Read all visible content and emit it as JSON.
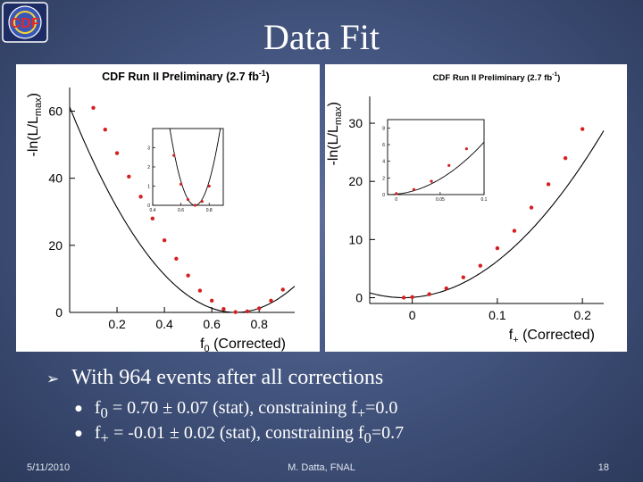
{
  "slide": {
    "title": "Data Fit",
    "logo_text": "CDF",
    "bullet_main": "With 964 events after all corrections",
    "sub1": {
      "a": "f",
      "a_sub": "0",
      "b": " = 0.70 ± 0.07 (stat), constraining f",
      "b_sub": "+",
      "c": "=0.0"
    },
    "sub2": {
      "a": "f",
      "a_sub": "+",
      "b": " = -0.01 ± 0.02 (stat), constraining f",
      "b_sub": "0",
      "c": "=0.7"
    }
  },
  "footer": {
    "date": "5/11/2010",
    "author": "M. Datta, FNAL",
    "page": "18"
  },
  "colors": {
    "marker": "#d42020",
    "curve": "#000000",
    "text": "#ffffff"
  },
  "chart_data": [
    {
      "type": "scatter",
      "title": "CDF Run II Preliminary (2.7 fb",
      "title_sup": "-1",
      "title_end": ")",
      "xlabel": "f",
      "xlabel_sub": "0",
      "xlabel_end": " (Corrected)",
      "ylabel": "-ln(L/L",
      "ylabel_sub": "max",
      "ylabel_end": ")",
      "xlim": [
        0.0,
        0.95
      ],
      "ylim": [
        0,
        66
      ],
      "xticks": [
        0.2,
        0.4,
        0.6,
        0.8
      ],
      "xtick_labels": [
        "0.2",
        "0.4",
        "0.6",
        "0.8"
      ],
      "yticks": [
        0,
        20,
        40,
        60
      ],
      "ytick_labels": [
        "0",
        "20",
        "40",
        "60"
      ],
      "fit_min": 0.7,
      "fit_coef": 125,
      "points": [
        {
          "x": 0.1,
          "y": 61
        },
        {
          "x": 0.15,
          "y": 54.5
        },
        {
          "x": 0.2,
          "y": 47.5
        },
        {
          "x": 0.25,
          "y": 40.5
        },
        {
          "x": 0.3,
          "y": 34.5
        },
        {
          "x": 0.35,
          "y": 28
        },
        {
          "x": 0.4,
          "y": 21.5
        },
        {
          "x": 0.45,
          "y": 16
        },
        {
          "x": 0.5,
          "y": 11
        },
        {
          "x": 0.55,
          "y": 6.5
        },
        {
          "x": 0.6,
          "y": 3.5
        },
        {
          "x": 0.65,
          "y": 1.0
        },
        {
          "x": 0.7,
          "y": 0.1
        },
        {
          "x": 0.75,
          "y": 0.3
        },
        {
          "x": 0.8,
          "y": 1.2
        },
        {
          "x": 0.85,
          "y": 3.5
        },
        {
          "x": 0.9,
          "y": 6.8
        }
      ],
      "inset": {
        "xlim": [
          0.4,
          0.9
        ],
        "ylim": [
          0,
          4
        ],
        "xticks": [
          0.4,
          0.6,
          0.8
        ],
        "xtick_labels": [
          "0.4",
          "0.6",
          "0.8"
        ],
        "yticks": [
          0,
          1,
          2,
          3
        ],
        "ytick_labels": [
          "0",
          "1",
          "2",
          "3"
        ],
        "points": [
          {
            "x": 0.55,
            "y": 2.6
          },
          {
            "x": 0.6,
            "y": 1.1
          },
          {
            "x": 0.65,
            "y": 0.3
          },
          {
            "x": 0.7,
            "y": 0.0
          },
          {
            "x": 0.75,
            "y": 0.2
          },
          {
            "x": 0.8,
            "y": 1.0
          }
        ]
      }
    },
    {
      "type": "scatter",
      "title": "CDF Run II Preliminary (2.7 fb",
      "title_sup": "-1",
      "title_end": ")",
      "xlabel": "f",
      "xlabel_sub": "+",
      "xlabel_end": " (Corrected)",
      "ylabel": "-ln(L/L",
      "ylabel_sub": "max",
      "ylabel_end": ")",
      "xlim": [
        -0.05,
        0.225
      ],
      "ylim": [
        -1,
        34
      ],
      "xticks": [
        0,
        0.1,
        0.2
      ],
      "xtick_labels": [
        "0",
        "0.1",
        "0.2"
      ],
      "yticks": [
        0,
        10,
        20,
        30
      ],
      "ytick_labels": [
        "0",
        "10",
        "20",
        "30"
      ],
      "fit_min": -0.01,
      "fit_coef": 520,
      "points": [
        {
          "x": -0.01,
          "y": 0.0
        },
        {
          "x": 0.0,
          "y": 0.1
        },
        {
          "x": 0.02,
          "y": 0.6
        },
        {
          "x": 0.04,
          "y": 1.6
        },
        {
          "x": 0.06,
          "y": 3.5
        },
        {
          "x": 0.08,
          "y": 5.5
        },
        {
          "x": 0.1,
          "y": 8.5
        },
        {
          "x": 0.12,
          "y": 11.5
        },
        {
          "x": 0.14,
          "y": 15.5
        },
        {
          "x": 0.16,
          "y": 19.5
        },
        {
          "x": 0.18,
          "y": 24
        },
        {
          "x": 0.2,
          "y": 29
        }
      ],
      "inset": {
        "xlim": [
          -0.01,
          0.1
        ],
        "ylim": [
          0,
          9
        ],
        "xticks": [
          0,
          0.05,
          0.1
        ],
        "xtick_labels": [
          "0",
          "0.05",
          "0.1"
        ],
        "yticks": [
          0,
          2,
          4,
          6,
          8
        ],
        "ytick_labels": [
          "0",
          "2",
          "4",
          "6",
          "8"
        ],
        "points": [
          {
            "x": 0.0,
            "y": 0.1
          },
          {
            "x": 0.02,
            "y": 0.6
          },
          {
            "x": 0.04,
            "y": 1.6
          },
          {
            "x": 0.06,
            "y": 3.5
          },
          {
            "x": 0.08,
            "y": 5.5
          }
        ]
      }
    }
  ]
}
